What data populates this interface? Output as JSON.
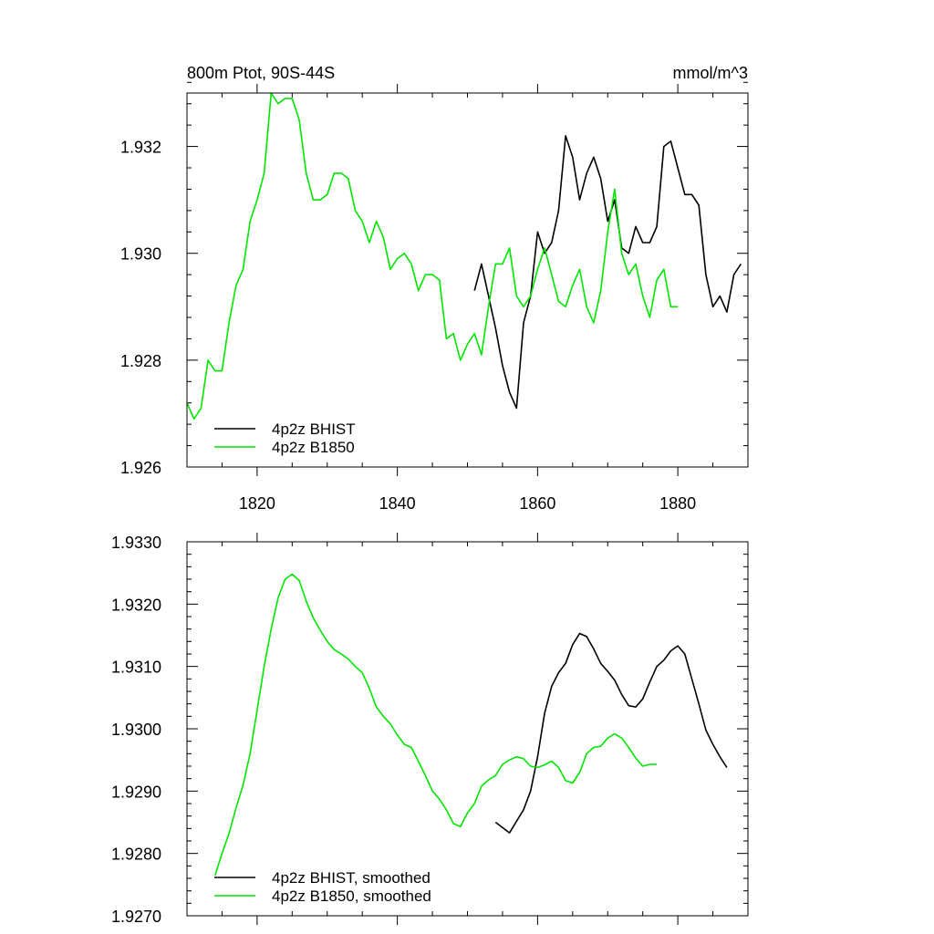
{
  "chart_data": [
    {
      "type": "line",
      "title": "800m Ptot, 90S-44S",
      "units": "mmol/m^3",
      "xlim": [
        1810,
        1890
      ],
      "ylim": [
        1.926,
        1.933
      ],
      "x_ticks": [
        1820,
        1840,
        1860,
        1880
      ],
      "x_tick_labels": [
        "1820",
        "1840",
        "1860",
        "1880"
      ],
      "y_ticks": [
        1.926,
        1.928,
        1.93,
        1.932
      ],
      "y_tick_labels": [
        "1.926",
        "1.928",
        "1.930",
        "1.932"
      ],
      "legend": "bottom-left",
      "grid": false,
      "series": [
        {
          "name": "4p2z BHIST",
          "color": "#000000",
          "x": [
            1851,
            1852,
            1853,
            1854,
            1855,
            1856,
            1857,
            1858,
            1859,
            1860,
            1861,
            1862,
            1863,
            1864,
            1865,
            1866,
            1867,
            1868,
            1869,
            1870,
            1871,
            1872,
            1873,
            1874,
            1875,
            1876,
            1877,
            1878,
            1879,
            1880,
            1881,
            1882,
            1883,
            1884,
            1885,
            1886,
            1887,
            1888,
            1889
          ],
          "y": [
            1.9293,
            1.9298,
            1.9292,
            1.9286,
            1.9279,
            1.9274,
            1.9271,
            1.9287,
            1.9292,
            1.9304,
            1.93,
            1.9302,
            1.9308,
            1.9322,
            1.9318,
            1.931,
            1.9315,
            1.9318,
            1.9314,
            1.9306,
            1.931,
            1.9301,
            1.93,
            1.9305,
            1.9302,
            1.9302,
            1.9305,
            1.932,
            1.9321,
            1.9316,
            1.9311,
            1.9311,
            1.9309,
            1.9296,
            1.929,
            1.9292,
            1.9289,
            1.9296,
            1.9298
          ]
        },
        {
          "name": "4p2z B1850",
          "color": "#00e600",
          "x": [
            1810,
            1811,
            1812,
            1813,
            1814,
            1815,
            1816,
            1817,
            1818,
            1819,
            1820,
            1821,
            1822,
            1823,
            1824,
            1825,
            1826,
            1827,
            1828,
            1829,
            1830,
            1831,
            1832,
            1833,
            1834,
            1835,
            1836,
            1837,
            1838,
            1839,
            1840,
            1841,
            1842,
            1843,
            1844,
            1845,
            1846,
            1847,
            1848,
            1849,
            1850,
            1851,
            1852,
            1853,
            1854,
            1855,
            1856,
            1857,
            1858,
            1859,
            1860,
            1861,
            1862,
            1863,
            1864,
            1865,
            1866,
            1867,
            1868,
            1869,
            1870,
            1871,
            1872,
            1873,
            1874,
            1875,
            1876,
            1877,
            1878,
            1879,
            1880
          ],
          "y": [
            1.9272,
            1.9269,
            1.9271,
            1.928,
            1.9278,
            1.9278,
            1.9287,
            1.9294,
            1.9297,
            1.9306,
            1.931,
            1.9315,
            1.933,
            1.9328,
            1.9329,
            1.9329,
            1.9325,
            1.9315,
            1.931,
            1.931,
            1.9311,
            1.9315,
            1.9315,
            1.9314,
            1.9308,
            1.9306,
            1.9302,
            1.9306,
            1.9303,
            1.9297,
            1.9299,
            1.93,
            1.9298,
            1.9293,
            1.9296,
            1.9296,
            1.9295,
            1.9284,
            1.9285,
            1.928,
            1.9283,
            1.9285,
            1.9281,
            1.929,
            1.9298,
            1.9298,
            1.9301,
            1.9292,
            1.929,
            1.9292,
            1.9297,
            1.9301,
            1.9296,
            1.9291,
            1.929,
            1.9294,
            1.9297,
            1.929,
            1.9287,
            1.9293,
            1.9304,
            1.9312,
            1.93,
            1.9296,
            1.9298,
            1.9292,
            1.9288,
            1.9295,
            1.9297,
            1.929,
            1.929
          ]
        }
      ]
    },
    {
      "type": "line",
      "title": "",
      "xlim": [
        1810,
        1890
      ],
      "ylim": [
        1.927,
        1.933
      ],
      "x_ticks": [
        1820,
        1840,
        1860,
        1880
      ],
      "y_ticks": [
        1.927,
        1.928,
        1.929,
        1.93,
        1.931,
        1.932,
        1.933
      ],
      "y_tick_labels": [
        "1.9270",
        "1.9280",
        "1.9290",
        "1.9300",
        "1.9310",
        "1.9320",
        "1.9330"
      ],
      "legend": "bottom-left",
      "grid": false,
      "series": [
        {
          "name": "4p2z BHIST, smoothed",
          "color": "#000000",
          "x": [
            1854,
            1856,
            1858,
            1859,
            1860,
            1861,
            1862,
            1863,
            1864,
            1865,
            1866,
            1867,
            1868,
            1869,
            1870,
            1871,
            1872,
            1873,
            1874,
            1875,
            1876,
            1877,
            1878,
            1879,
            1880,
            1881,
            1882,
            1883,
            1884,
            1885,
            1886,
            1887
          ],
          "y": [
            1.9285,
            1.92833,
            1.9287,
            1.929,
            1.92955,
            1.93025,
            1.93068,
            1.9309,
            1.93105,
            1.93135,
            1.93153,
            1.93148,
            1.93128,
            1.93105,
            1.93092,
            1.93078,
            1.93055,
            1.93037,
            1.93035,
            1.93048,
            1.93075,
            1.931,
            1.9311,
            1.93125,
            1.93133,
            1.9312,
            1.9308,
            1.9304,
            1.92998,
            1.92975,
            1.92955,
            1.92938
          ]
        },
        {
          "name": "4p2z B1850, smoothed",
          "color": "#00e600",
          "x": [
            1814,
            1815,
            1816,
            1817,
            1818,
            1819,
            1820,
            1821,
            1822,
            1823,
            1824,
            1825,
            1826,
            1827,
            1828,
            1829,
            1830,
            1831,
            1832,
            1833,
            1834,
            1835,
            1836,
            1837,
            1838,
            1839,
            1840,
            1841,
            1842,
            1843,
            1844,
            1845,
            1846,
            1847,
            1848,
            1849,
            1850,
            1851,
            1852,
            1853,
            1854,
            1855,
            1856,
            1857,
            1858,
            1859,
            1860,
            1861,
            1862,
            1863,
            1864,
            1865,
            1866,
            1867,
            1868,
            1869,
            1870,
            1871,
            1872,
            1873,
            1874,
            1875,
            1876,
            1877
          ],
          "y": [
            1.92765,
            1.928,
            1.92832,
            1.92873,
            1.9291,
            1.9296,
            1.9303,
            1.931,
            1.9316,
            1.9321,
            1.9324,
            1.93248,
            1.93238,
            1.93205,
            1.93178,
            1.93158,
            1.9314,
            1.93127,
            1.9312,
            1.93112,
            1.931,
            1.9309,
            1.93065,
            1.93035,
            1.9302,
            1.93008,
            1.9299,
            1.92975,
            1.9297,
            1.92948,
            1.92925,
            1.929,
            1.92887,
            1.9287,
            1.92848,
            1.92843,
            1.92865,
            1.9288,
            1.92908,
            1.92918,
            1.92925,
            1.92943,
            1.9295,
            1.92955,
            1.92952,
            1.9294,
            1.92938,
            1.92942,
            1.92948,
            1.92938,
            1.92917,
            1.92913,
            1.9293,
            1.9296,
            1.9297,
            1.92972,
            1.92985,
            1.92992,
            1.92985,
            1.9297,
            1.92953,
            1.9294,
            1.92943,
            1.92943
          ]
        }
      ]
    }
  ]
}
